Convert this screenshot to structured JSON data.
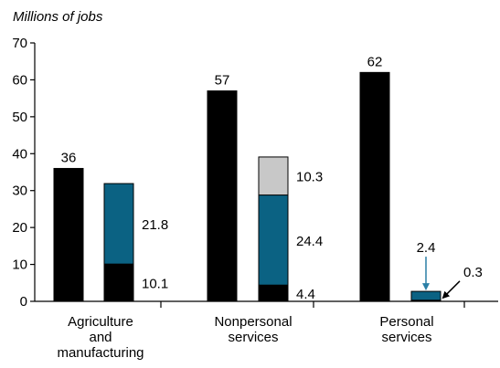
{
  "chart_data": {
    "type": "bar",
    "stacked": true,
    "ylabel": "Millions of jobs",
    "xlabel": "",
    "ylim": [
      0,
      70
    ],
    "yticks": [
      "0",
      "10",
      "20",
      "30",
      "40",
      "50",
      "60",
      "70"
    ],
    "grid": false,
    "legend": "none",
    "categories": [
      [
        "Agriculture",
        "and",
        "manufacturing"
      ],
      [
        "Nonpersonal",
        "services"
      ],
      [
        "Personal",
        "services"
      ]
    ],
    "groups": [
      {
        "category_index": 0,
        "bars": [
          {
            "segments": [
              {
                "value": 36,
                "color": "#000000",
                "label": "36",
                "label_position": "top"
              }
            ]
          },
          {
            "segments": [
              {
                "value": 10.1,
                "color": "#000000",
                "label": "10.1",
                "label_position": "right"
              },
              {
                "value": 21.8,
                "color": "#0b6283",
                "label": "21.8",
                "label_position": "right"
              }
            ]
          }
        ]
      },
      {
        "category_index": 1,
        "bars": [
          {
            "segments": [
              {
                "value": 57,
                "color": "#000000",
                "label": "57",
                "label_position": "top"
              }
            ]
          },
          {
            "segments": [
              {
                "value": 4.4,
                "color": "#000000",
                "label": "4.4",
                "label_position": "right"
              },
              {
                "value": 24.4,
                "color": "#0b6283",
                "label": "24.4",
                "label_position": "right"
              },
              {
                "value": 10.3,
                "color": "#c8c8c8",
                "label": "10.3",
                "label_position": "right"
              }
            ]
          }
        ]
      },
      {
        "category_index": 2,
        "bars": [
          {
            "segments": [
              {
                "value": 62,
                "color": "#000000",
                "label": "62",
                "label_position": "top"
              }
            ]
          },
          {
            "segments": [
              {
                "value": 0.3,
                "color": "#000000",
                "label": "0.3",
                "label_position": "arrow-right"
              },
              {
                "value": 2.4,
                "color": "#0b6283",
                "label": "2.4",
                "label_position": "arrow-top"
              }
            ]
          }
        ]
      }
    ],
    "colors": {
      "black": "#000000",
      "teal": "#0b6283",
      "gray": "#c8c8c8",
      "arrow_teal": "#2a7fa6"
    }
  }
}
